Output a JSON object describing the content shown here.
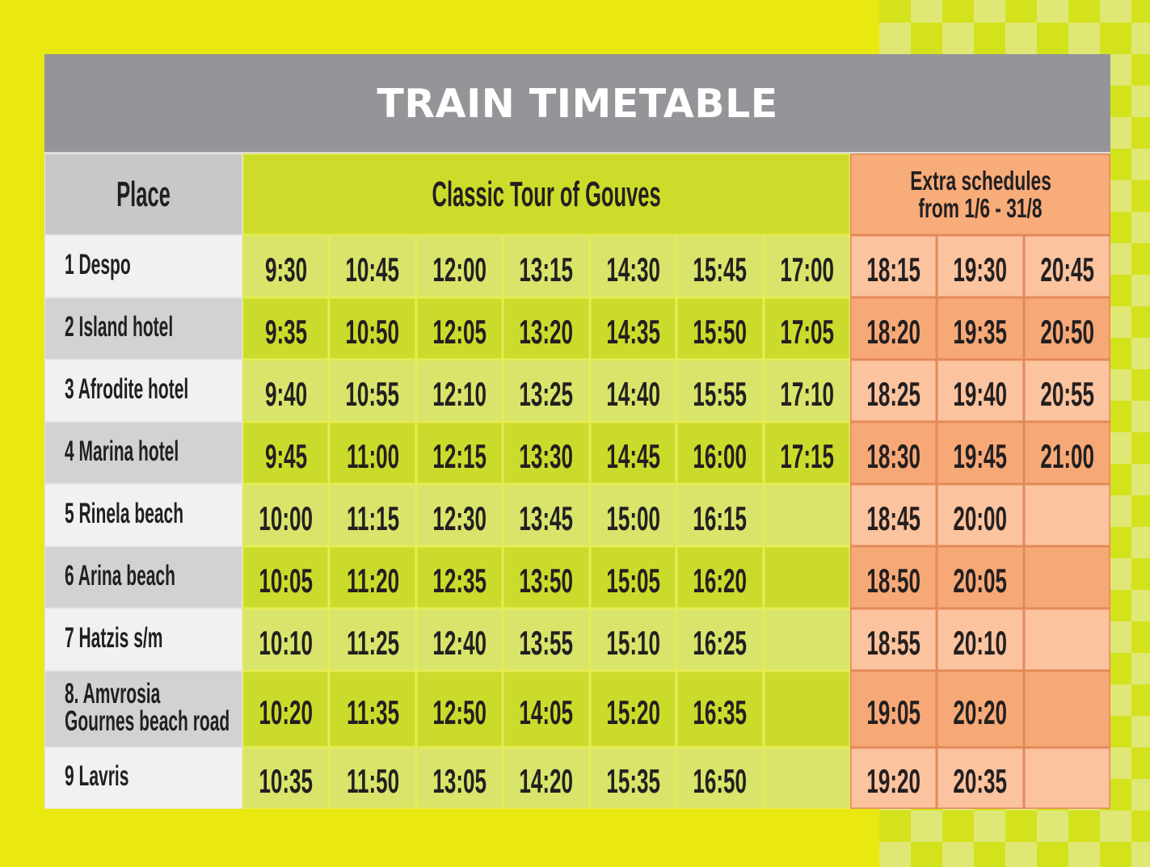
{
  "title": "TRAIN TIMETABLE",
  "header": {
    "place": "Place",
    "classic_tour": "Classic Tour of Gouves",
    "extra_schedules": [
      "Extra schedules",
      "from 1/6 - 31/8"
    ]
  },
  "rows": [
    {
      "place": [
        "1 Despo"
      ],
      "classic": [
        "9:30",
        "10:45",
        "12:00",
        "13:15",
        "14:30",
        "15:45",
        "17:00"
      ],
      "extra": [
        "18:15",
        "19:30",
        "20:45"
      ]
    },
    {
      "place": [
        "2 Island hotel"
      ],
      "classic": [
        "9:35",
        "10:50",
        "12:05",
        "13:20",
        "14:35",
        "15:50",
        "17:05"
      ],
      "extra": [
        "18:20",
        "19:35",
        "20:50"
      ]
    },
    {
      "place": [
        "3 Afrodite hotel"
      ],
      "classic": [
        "9:40",
        "10:55",
        "12:10",
        "13:25",
        "14:40",
        "15:55",
        "17:10"
      ],
      "extra": [
        "18:25",
        "19:40",
        "20:55"
      ]
    },
    {
      "place": [
        "4 Marina hotel"
      ],
      "classic": [
        "9:45",
        "11:00",
        "12:15",
        "13:30",
        "14:45",
        "16:00",
        "17:15"
      ],
      "extra": [
        "18:30",
        "19:45",
        "21:00"
      ]
    },
    {
      "place": [
        "5 Rinela beach"
      ],
      "classic": [
        "10:00",
        "11:15",
        "12:30",
        "13:45",
        "15:00",
        "16:15",
        null
      ],
      "extra": [
        "18:45",
        "20:00",
        null
      ]
    },
    {
      "place": [
        "6 Arina beach"
      ],
      "classic": [
        "10:05",
        "11:20",
        "12:35",
        "13:50",
        "15:05",
        "16:20",
        null
      ],
      "extra": [
        "18:50",
        "20:05",
        null
      ]
    },
    {
      "place": [
        "7 Hatzis s/m"
      ],
      "classic": [
        "10:10",
        "11:25",
        "12:40",
        "13:55",
        "15:10",
        "16:25",
        null
      ],
      "extra": [
        "18:55",
        "20:10",
        null
      ]
    },
    {
      "place": [
        "8. Amvrosia",
        "Gournes beach road"
      ],
      "classic": [
        "10:20",
        "11:35",
        "12:50",
        "14:05",
        "15:20",
        "16:35",
        null
      ],
      "extra": [
        "19:05",
        "20:20",
        null
      ]
    },
    {
      "place": [
        "9 Lavris"
      ],
      "classic": [
        "10:35",
        "11:50",
        "13:05",
        "14:20",
        "15:35",
        "16:50",
        null
      ],
      "extra": [
        "19:20",
        "20:35",
        null
      ]
    }
  ],
  "colors": {
    "background": "#e9e811",
    "checker_dark": "#d4e21d",
    "checker_light": "#dfe874",
    "title_bar": "#939598",
    "header_place": "#c7c8ca",
    "header_classic": "#cddc2a",
    "header_extra": "#f7ac7a",
    "place_light": "#f1f1f2",
    "place_dark": "#d1d2d4",
    "classic_light": "#d9e46a",
    "classic_dark": "#cbdb2b",
    "extra_light": "#fbc39e",
    "extra_dark": "#f6a977",
    "extra_line": "#e3895a",
    "classic_line": "#e5ec55",
    "text": "#231f20"
  }
}
